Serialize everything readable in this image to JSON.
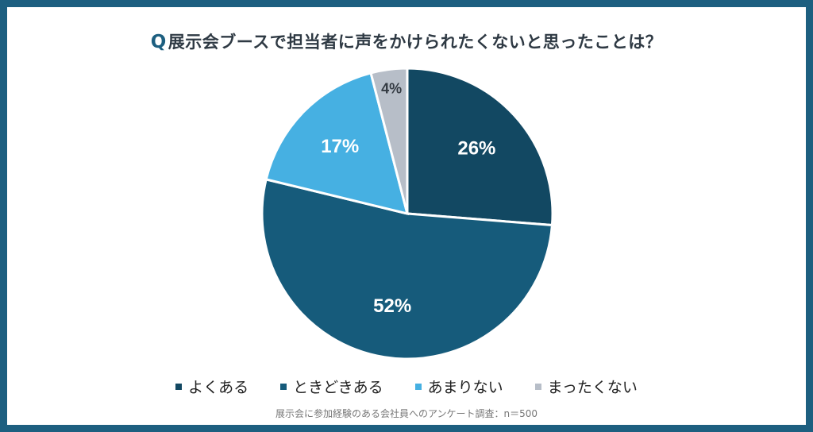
{
  "title": {
    "prefix": "Q",
    "text": "展示会ブースで担当者に声をかけられたくないと思ったことは？"
  },
  "chart_data": {
    "type": "pie",
    "slices": [
      {
        "label": "よくある",
        "value": 26,
        "display": "26%",
        "color": "#124862"
      },
      {
        "label": "ときどきある",
        "value": 52,
        "display": "52%",
        "color": "#165b7b"
      },
      {
        "label": "あまりない",
        "value": 17,
        "display": "17%",
        "color": "#46b0e2"
      },
      {
        "label": "まったくない",
        "value": 4,
        "display": "4%",
        "color": "#b7bec8"
      }
    ],
    "legend_position": "bottom"
  },
  "footnote": "展示会に参加経験のある会社員へのアンケート調査：n＝500"
}
